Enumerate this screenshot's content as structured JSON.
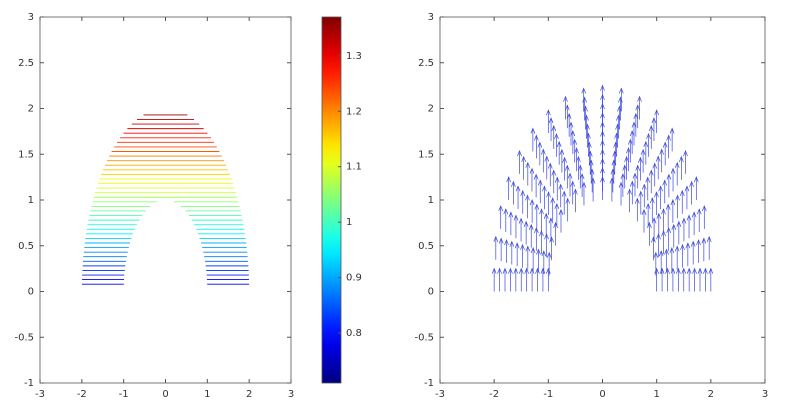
{
  "chart_data": [
    {
      "type": "contour",
      "y": [
        0.08,
        0.13,
        0.18,
        0.23,
        0.28,
        0.33,
        0.38,
        0.43,
        0.48,
        0.53,
        0.58,
        0.63,
        0.68,
        0.73,
        0.78,
        0.83,
        0.88,
        0.93,
        0.98,
        1.03,
        1.08,
        1.13,
        1.18,
        1.23,
        1.28,
        1.33,
        1.38,
        1.43,
        1.48,
        1.53,
        1.58,
        1.63,
        1.68,
        1.73,
        1.78,
        1.83,
        1.88,
        1.93
      ],
      "values": [
        0.78,
        0.79,
        0.81,
        0.82,
        0.84,
        0.85,
        0.87,
        0.88,
        0.9,
        0.91,
        0.93,
        0.95,
        0.96,
        0.98,
        0.99,
        1.01,
        1.02,
        1.04,
        1.05,
        1.07,
        1.09,
        1.1,
        1.12,
        1.13,
        1.15,
        1.16,
        1.18,
        1.19,
        1.21,
        1.23,
        1.24,
        1.26,
        1.27,
        1.29,
        1.3,
        1.32,
        1.33,
        1.35
      ],
      "domain": {
        "r_min": 1,
        "r_max": 2
      },
      "colormap": "jet",
      "xlim": [
        -3,
        3
      ],
      "ylim": [
        -1,
        3
      ],
      "xticks": [
        -3,
        -2,
        -1,
        0,
        1,
        2,
        3
      ],
      "yticks": [
        -1,
        -0.5,
        0,
        0.5,
        1,
        1.5,
        2,
        2.5,
        3
      ],
      "clim": [
        0.71,
        1.37
      ],
      "cticks": [
        0.8,
        0.9,
        1,
        1.1,
        1.2,
        1.3
      ]
    },
    {
      "type": "quiver",
      "r": [
        1,
        1.1,
        1.2,
        1.3,
        1.4,
        1.5,
        1.6,
        1.7,
        1.8,
        1.9,
        2
      ],
      "theta_deg": [
        0,
        10,
        20,
        30,
        40,
        50,
        60,
        70,
        80,
        90,
        100,
        110,
        120,
        130,
        140,
        150,
        160,
        170,
        180
      ],
      "u": 0,
      "v": 0.25,
      "color": "#3a46e0",
      "xlim": [
        -3,
        3
      ],
      "ylim": [
        -1,
        3
      ],
      "xticks": [
        -3,
        -2,
        -1,
        0,
        1,
        2,
        3
      ],
      "yticks": [
        -1,
        -0.5,
        0,
        0.5,
        1,
        1.5,
        2,
        2.5,
        3
      ]
    }
  ]
}
